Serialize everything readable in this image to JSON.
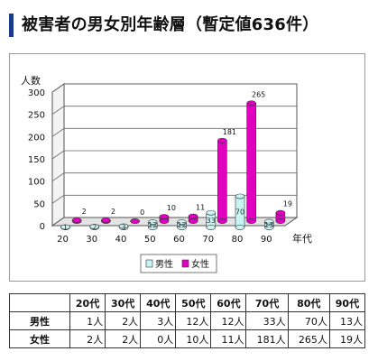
{
  "page": {
    "title": "被害者の男女別年齢層（暫定値636件）"
  },
  "chart_data": {
    "type": "bar",
    "categories": [
      "20",
      "30",
      "40",
      "50",
      "60",
      "70",
      "80",
      "90"
    ],
    "series": [
      {
        "name": "男性",
        "values": [
          1,
          2,
          3,
          12,
          12,
          33,
          70,
          13
        ],
        "color": "#c8f4f4",
        "label_color": "#ffffff"
      },
      {
        "name": "女性",
        "values": [
          2,
          2,
          0,
          10,
          11,
          181,
          265,
          19
        ],
        "color": "#e000c0",
        "label_color": "#111111"
      }
    ],
    "ylabel": "人数",
    "xlabel": "年代",
    "yticks": [
      "0",
      "50",
      "100",
      "150",
      "200",
      "250",
      "300"
    ],
    "ylim": [
      0,
      300
    ],
    "legend_position": "bottom-right",
    "grid": true
  },
  "table": {
    "headers": [
      "",
      "20代",
      "30代",
      "40代",
      "50代",
      "60代",
      "70代",
      "80代",
      "90代"
    ],
    "rows": [
      {
        "label": "男性",
        "cells": [
          "1人",
          "2人",
          "3人",
          "12人",
          "12人",
          "33人",
          "70人",
          "13人"
        ]
      },
      {
        "label": "女性",
        "cells": [
          "2人",
          "2人",
          "0人",
          "10人",
          "11人",
          "181人",
          "265人",
          "19人"
        ]
      }
    ]
  }
}
